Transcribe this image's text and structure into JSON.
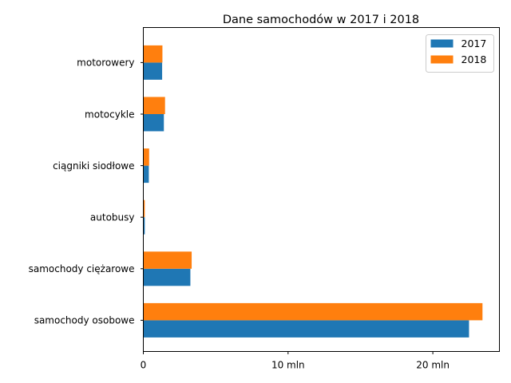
{
  "chart_data": {
    "type": "bar",
    "orientation": "horizontal",
    "title": "Dane samochodów w 2017 i 2018",
    "xlabel": "",
    "ylabel": "",
    "categories": [
      "samochody osobowe",
      "samochody ciężarowe",
      "autobusy",
      "ciągniki siodłowe",
      "motocykle",
      "motorowery"
    ],
    "series": [
      {
        "name": "2017",
        "color": "#1f77b4",
        "values": [
          22.5,
          3.25,
          0.1,
          0.38,
          1.42,
          1.3
        ]
      },
      {
        "name": "2018",
        "color": "#ff7f0e",
        "values": [
          23.43,
          3.34,
          0.1,
          0.4,
          1.5,
          1.32
        ]
      }
    ],
    "xlim": [
      0,
      24.6
    ],
    "xticks": [
      {
        "value": 0,
        "label": "0"
      },
      {
        "value": 10,
        "label": "10 mln"
      },
      {
        "value": 20,
        "label": "20 mln"
      }
    ],
    "grid": false,
    "legend_position": "top-right"
  }
}
